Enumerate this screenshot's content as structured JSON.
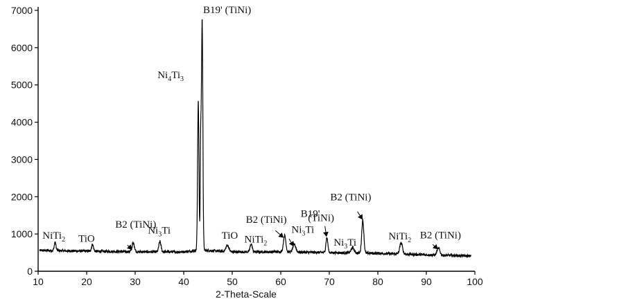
{
  "chart_data": {
    "type": "line",
    "title": "",
    "xlabel": "2-Theta-Scale",
    "ylabel": "",
    "xlim": [
      10,
      100
    ],
    "ylim": [
      0,
      7000
    ],
    "x_ticks": [
      "10",
      "20",
      "30",
      "40",
      "50",
      "60",
      "70",
      "80",
      "90",
      "100"
    ],
    "y_ticks": [
      "0",
      "1000",
      "2000",
      "3000",
      "4000",
      "5000",
      "6000",
      "7000"
    ],
    "grid": false,
    "legend": "none",
    "series_color": "#000000",
    "baseline": [
      [
        10,
        560
      ],
      [
        20,
        540
      ],
      [
        30,
        520
      ],
      [
        40,
        520
      ],
      [
        43,
        560
      ],
      [
        44.5,
        560
      ],
      [
        50,
        520
      ],
      [
        60,
        520
      ],
      [
        70,
        500
      ],
      [
        80,
        480
      ],
      [
        90,
        440
      ],
      [
        99,
        410
      ]
    ],
    "peaks": [
      {
        "x": 13.5,
        "y": 770,
        "w": 0.18
      },
      {
        "x": 21.2,
        "y": 720,
        "w": 0.2
      },
      {
        "x": 29.6,
        "y": 760,
        "w": 0.25
      },
      {
        "x": 35.1,
        "y": 800,
        "w": 0.22
      },
      {
        "x": 43.0,
        "y": 4600,
        "w": 0.14
      },
      {
        "x": 43.5,
        "y": 3300,
        "w": 0.1
      },
      {
        "x": 43.8,
        "y": 6800,
        "w": 0.14
      },
      {
        "x": 49.0,
        "y": 700,
        "w": 0.3
      },
      {
        "x": 53.9,
        "y": 730,
        "w": 0.22
      },
      {
        "x": 60.8,
        "y": 960,
        "w": 0.25
      },
      {
        "x": 62.8,
        "y": 720,
        "w": 0.3
      },
      {
        "x": 69.5,
        "y": 900,
        "w": 0.2
      },
      {
        "x": 74.8,
        "y": 630,
        "w": 0.3
      },
      {
        "x": 76.9,
        "y": 1360,
        "w": 0.22
      },
      {
        "x": 84.8,
        "y": 760,
        "w": 0.28
      },
      {
        "x": 92.5,
        "y": 620,
        "w": 0.3
      }
    ],
    "annotations": [
      {
        "base": "NiTi",
        "sub": "2",
        "tail": "",
        "x": 10.9,
        "y": 870
      },
      {
        "base": "TiO",
        "sub": "",
        "tail": "",
        "x": 18.3,
        "y": 790
      },
      {
        "base": "B2 (TiNi)",
        "sub": "",
        "tail": "",
        "x": 25.9,
        "y": 1170
      },
      {
        "base": "Ni",
        "sub": "3",
        "tail": "Ti",
        "x": 32.6,
        "y": 1010
      },
      {
        "base": "Ni",
        "sub": "4",
        "tail": "Ti",
        "sub2": "3",
        "x": 34.6,
        "y": 5180
      },
      {
        "base": "B19' (TiNi)",
        "sub": "",
        "tail": "",
        "x": 44.0,
        "y": 6930
      },
      {
        "base": "TiO",
        "sub": "",
        "tail": "",
        "x": 47.8,
        "y": 870
      },
      {
        "base": "NiTi",
        "sub": "2",
        "tail": "",
        "x": 52.5,
        "y": 770
      },
      {
        "base": "B2 (TiNi)",
        "sub": "",
        "tail": "",
        "x": 52.8,
        "y": 1300
      },
      {
        "base": "B19'",
        "sub": "",
        "tail": "",
        "x": 64.1,
        "y": 1460
      },
      {
        "base": "Ni",
        "sub": "3",
        "tail": "Ti",
        "x": 62.2,
        "y": 1030
      },
      {
        "base": "(TiNi)",
        "sub": "",
        "tail": "",
        "x": 65.6,
        "y": 1350
      },
      {
        "base": "B2 (TiNi)",
        "sub": "",
        "tail": "",
        "x": 70.2,
        "y": 1900
      },
      {
        "base": "Ni",
        "sub": "3",
        "tail": "Ti",
        "x": 70.9,
        "y": 690
      },
      {
        "base": "NiTi",
        "sub": "2",
        "tail": "",
        "x": 82.2,
        "y": 850
      },
      {
        "base": "B2 (TiNi)",
        "sub": "",
        "tail": "",
        "x": 88.7,
        "y": 880
      }
    ],
    "arrows": [
      {
        "from": [
          28.4,
          700
        ],
        "to": [
          29.3,
          590
        ]
      },
      {
        "from": [
          58.9,
          1090
        ],
        "to": [
          60.5,
          910
        ]
      },
      {
        "from": [
          61.7,
          870
        ],
        "to": [
          62.6,
          680
        ]
      },
      {
        "from": [
          69.1,
          1210
        ],
        "to": [
          69.4,
          940
        ]
      },
      {
        "from": [
          75.8,
          1600
        ],
        "to": [
          76.8,
          1400
        ]
      },
      {
        "from": [
          91.3,
          720
        ],
        "to": [
          92.3,
          600
        ]
      }
    ]
  }
}
